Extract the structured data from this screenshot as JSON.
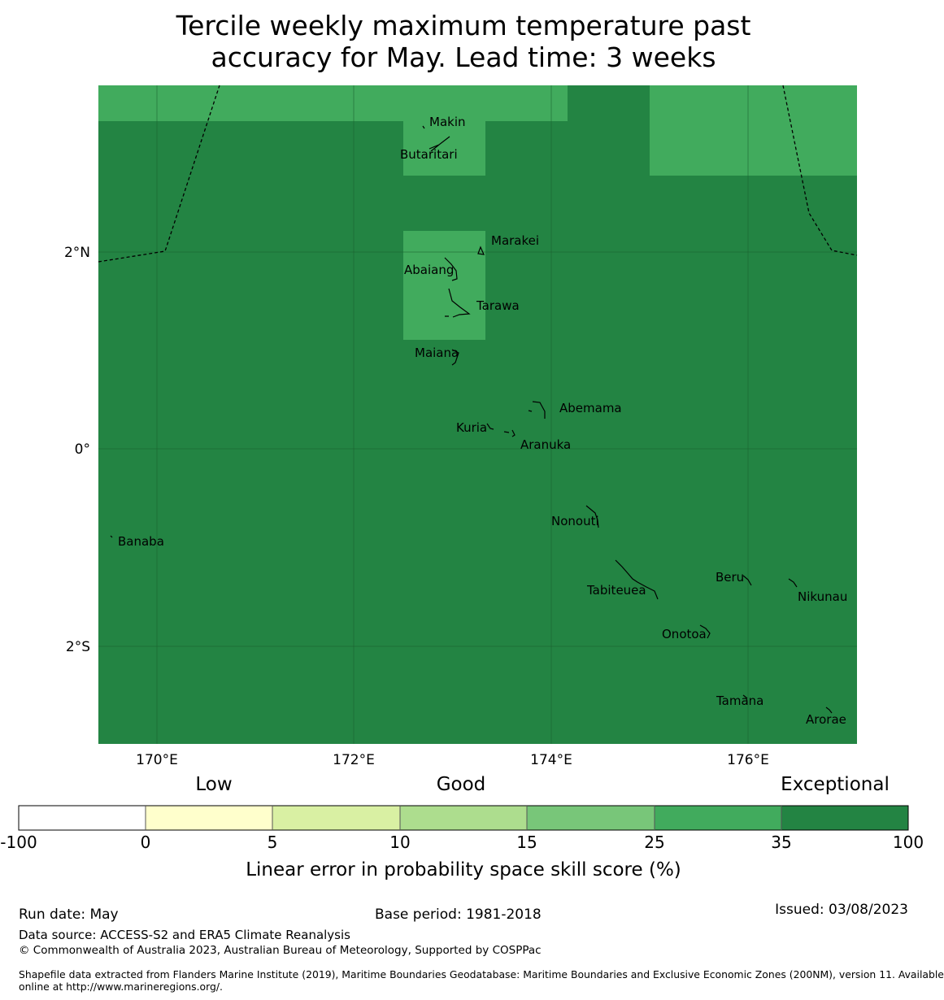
{
  "title": {
    "line1": "Tercile weekly maximum temperature past",
    "line2": "accuracy for May. Lead time: 3 weeks"
  },
  "map": {
    "lat_ticks": [
      "2°N",
      "0°",
      "2°S"
    ],
    "lon_ticks": [
      "170°E",
      "172°E",
      "174°E",
      "176°E"
    ],
    "islands": [
      {
        "name": "Makin"
      },
      {
        "name": "Butaritari"
      },
      {
        "name": "Marakei"
      },
      {
        "name": "Abaiang"
      },
      {
        "name": "Tarawa"
      },
      {
        "name": "Maiana"
      },
      {
        "name": "Abemama"
      },
      {
        "name": "Kuria"
      },
      {
        "name": "Aranuka"
      },
      {
        "name": "Banaba"
      },
      {
        "name": "Nonouti"
      },
      {
        "name": "Tabiteuea"
      },
      {
        "name": "Beru"
      },
      {
        "name": "Nikunau"
      },
      {
        "name": "Onotoa"
      },
      {
        "name": "Tamana"
      },
      {
        "name": "Arorae"
      }
    ],
    "colors": {
      "exceptional": "#238443",
      "very_good": "#41ab5d"
    }
  },
  "legend": {
    "categories": [
      "Low",
      "Good",
      "Exceptional"
    ],
    "ticks": [
      "-100",
      "0",
      "5",
      "10",
      "15",
      "25",
      "35",
      "100"
    ],
    "colors": [
      "#ffffff",
      "#ffffcc",
      "#d9f0a3",
      "#addd8e",
      "#78c679",
      "#41ab5d",
      "#238443"
    ],
    "label": "Linear error in probability space skill score (%)"
  },
  "footer": {
    "run_date": "Run date: May",
    "base_period": "Base period: 1981-2018",
    "issued": "Issued: 03/08/2023",
    "data_source": "Data source: ACCESS-S2 and ERA5 Climate Reanalysis",
    "copyright": "© Commonwealth of Australia 2023, Australian Bureau of Meteorology, Supported by COSPPac",
    "shapefile_line1": "Shapefile data extracted from Flanders Marine Institute (2019), Maritime Boundaries Geodatabase: Maritime Boundaries and Exclusive Economic Zones (200NM), version 11. Available",
    "shapefile_line2": "online at http://www.marineregions.org/."
  }
}
